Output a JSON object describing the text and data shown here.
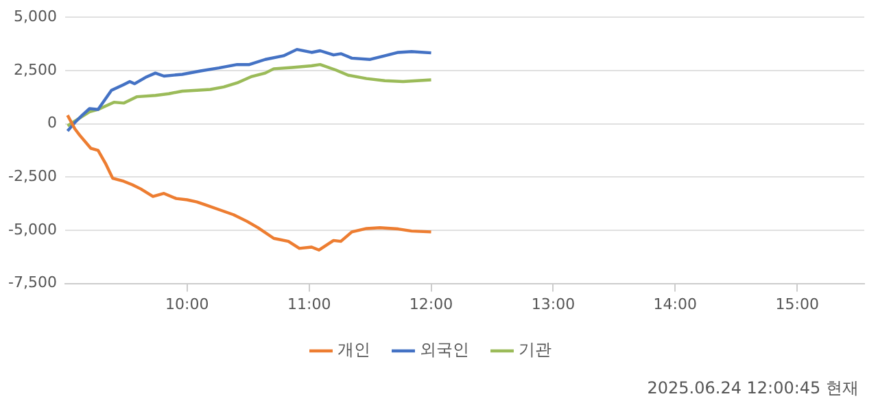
{
  "chart_data": {
    "type": "line",
    "legend": "bottom",
    "grid": "y",
    "marker": "none",
    "line_style": "solid",
    "xlim": [
      9,
      15.55
    ],
    "xticks": [
      {
        "value": 10,
        "label": "10:00"
      },
      {
        "value": 11,
        "label": "11:00"
      },
      {
        "value": 12,
        "label": "12:00"
      },
      {
        "value": 13,
        "label": "13:00"
      },
      {
        "value": 14,
        "label": "14:00"
      },
      {
        "value": 15,
        "label": "15:00"
      }
    ],
    "ylim": [
      -7500,
      5000
    ],
    "yticks": [
      {
        "value": -7500,
        "label": "-7,500"
      },
      {
        "value": -5000,
        "label": "-5,000"
      },
      {
        "value": -2500,
        "label": "-2,500"
      },
      {
        "value": 0,
        "label": "0"
      },
      {
        "value": 2500,
        "label": "2,500"
      },
      {
        "value": 5000,
        "label": "5,000"
      }
    ],
    "series": [
      {
        "name": "개인",
        "color": "#ed7d31",
        "x": [
          9.02,
          9.08,
          9.12,
          9.21,
          9.27,
          9.33,
          9.39,
          9.48,
          9.55,
          9.62,
          9.72,
          9.81,
          9.91,
          10.0,
          10.08,
          10.15,
          10.26,
          10.38,
          10.49,
          10.58,
          10.71,
          10.83,
          10.92,
          11.02,
          11.08,
          11.2,
          11.26,
          11.35,
          11.47,
          11.58,
          11.73,
          11.84,
          12.0
        ],
        "values": [
          400,
          -240,
          -540,
          -1150,
          -1250,
          -1850,
          -2560,
          -2700,
          -2860,
          -3060,
          -3410,
          -3270,
          -3510,
          -3570,
          -3670,
          -3810,
          -4030,
          -4270,
          -4580,
          -4880,
          -5380,
          -5520,
          -5850,
          -5790,
          -5930,
          -5480,
          -5520,
          -5080,
          -4920,
          -4880,
          -4940,
          -5040,
          -5080
        ]
      },
      {
        "name": "외국인",
        "color": "#4472c4",
        "x": [
          9.02,
          9.08,
          9.14,
          9.2,
          9.27,
          9.38,
          9.48,
          9.53,
          9.57,
          9.66,
          9.74,
          9.81,
          9.96,
          10.11,
          10.26,
          10.41,
          10.51,
          10.64,
          10.79,
          10.9,
          11.02,
          11.09,
          11.2,
          11.26,
          11.35,
          11.5,
          11.62,
          11.73,
          11.84,
          12.0
        ],
        "values": [
          -340,
          60,
          400,
          710,
          670,
          1570,
          1840,
          1980,
          1880,
          2180,
          2380,
          2240,
          2320,
          2480,
          2620,
          2780,
          2780,
          3020,
          3190,
          3490,
          3350,
          3430,
          3230,
          3290,
          3080,
          3020,
          3190,
          3350,
          3390,
          3330
        ]
      },
      {
        "name": "기관",
        "color": "#9bbb59",
        "x": [
          9.02,
          9.1,
          9.2,
          9.27,
          9.4,
          9.48,
          9.59,
          9.74,
          9.85,
          9.96,
          10.08,
          10.19,
          10.3,
          10.41,
          10.53,
          10.64,
          10.71,
          10.86,
          11.02,
          11.09,
          11.22,
          11.32,
          11.47,
          11.62,
          11.77,
          12.0
        ],
        "values": [
          -100,
          200,
          560,
          670,
          1010,
          970,
          1270,
          1330,
          1410,
          1530,
          1570,
          1610,
          1730,
          1920,
          2220,
          2380,
          2580,
          2640,
          2720,
          2780,
          2520,
          2280,
          2120,
          2020,
          1980,
          2060
        ]
      }
    ],
    "annotations": [
      "2025.06.24 12:00:45 현재"
    ]
  }
}
